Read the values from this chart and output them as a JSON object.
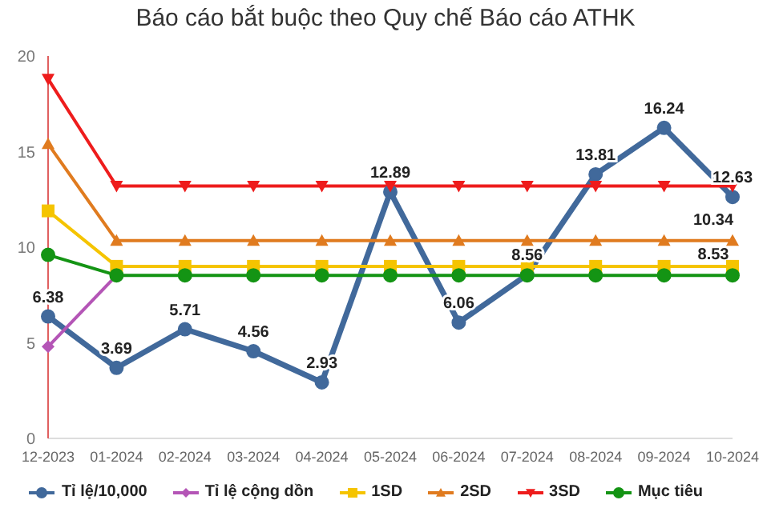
{
  "chart_data": {
    "type": "line",
    "title": "Báo cáo bắt buộc theo Quy chế Báo cáo ATHK",
    "categories": [
      "12-2023",
      "01-2024",
      "02-2024",
      "03-2024",
      "04-2024",
      "05-2024",
      "06-2024",
      "07-2024",
      "08-2024",
      "09-2024",
      "10-2024"
    ],
    "series": [
      {
        "name": "Tỉ lệ/10,000",
        "color": "#41699b",
        "marker": "circle",
        "values": [
          6.38,
          3.69,
          5.71,
          4.56,
          2.93,
          12.89,
          6.06,
          8.56,
          13.81,
          16.24,
          12.63
        ],
        "value_labels": [
          "6.38",
          "3.69",
          "5.71",
          "4.56",
          "2.93",
          "12.89",
          "6.06",
          "8.56",
          "13.81",
          "16.24",
          "12.63"
        ]
      },
      {
        "name": "Tỉ lệ cộng dồn",
        "color": "#b455b6",
        "marker": "diamond",
        "values": [
          4.8,
          8.53,
          null,
          null,
          null,
          null,
          null,
          null,
          null,
          null,
          null
        ]
      },
      {
        "name": "1SD",
        "color": "#f5c400",
        "marker": "square",
        "values": [
          11.9,
          9.0,
          9.0,
          9.0,
          9.0,
          9.0,
          9.0,
          9.0,
          9.0,
          9.0,
          9.0
        ]
      },
      {
        "name": "2SD",
        "color": "#e07b1f",
        "marker": "triangle",
        "values": [
          15.4,
          10.34,
          10.34,
          10.34,
          10.34,
          10.34,
          10.34,
          10.34,
          10.34,
          10.34,
          10.34
        ]
      },
      {
        "name": "3SD",
        "color": "#ee1c1c",
        "marker": "triangle-down",
        "values": [
          18.8,
          13.2,
          13.2,
          13.2,
          13.2,
          13.2,
          13.2,
          13.2,
          13.2,
          13.2,
          13.2
        ]
      },
      {
        "name": "Mục tiêu",
        "color": "#149414",
        "marker": "circle",
        "values": [
          9.6,
          8.53,
          8.53,
          8.53,
          8.53,
          8.53,
          8.53,
          8.53,
          8.53,
          8.53,
          8.53
        ]
      }
    ],
    "annotations": [
      {
        "text": "10.34",
        "x": "10-2024",
        "y": 10.34
      },
      {
        "text": "8.53",
        "x": "10-2024",
        "y": 8.53
      }
    ],
    "ylim": [
      0,
      20
    ],
    "yticks": [
      0,
      5,
      10,
      15,
      20
    ],
    "grid": false,
    "legend": "bottom"
  }
}
